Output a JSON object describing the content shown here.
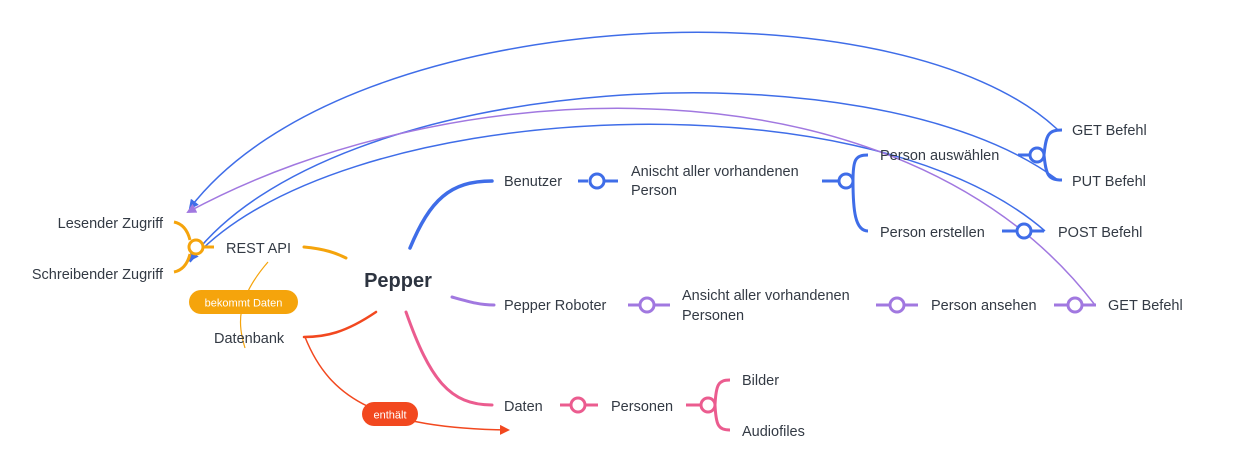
{
  "central": "Pepper",
  "colors": {
    "blue": "#3f6de8",
    "purple": "#a178e0",
    "pink": "#eb5c8f",
    "orange": "#f5a40c",
    "red": "#f2481f"
  },
  "nodes": {
    "benutzer": "Benutzer",
    "ansicht_person_1": "Anischt aller vorhandenen",
    "ansicht_person_2": "Person",
    "person_auswaehlen": "Person auswählen",
    "person_erstellen": "Person erstellen",
    "get_befehl_top": "GET Befehl",
    "put_befehl": "PUT Befehl",
    "post_befehl": "POST Befehl",
    "pepper_roboter": "Pepper Roboter",
    "ansicht_personen_1": "Ansicht aller vorhandenen",
    "ansicht_personen_2": "Personen",
    "person_ansehen": "Person ansehen",
    "get_befehl_mid": "GET Befehl",
    "daten": "Daten",
    "personen": "Personen",
    "bilder": "Bilder",
    "audiofiles": "Audiofiles",
    "rest_api": "REST API",
    "lesender_zugriff": "Lesender Zugriff",
    "schreibender_zugriff": "Schreibender Zugriff",
    "datenbank": "Datenbank"
  },
  "relations": {
    "bekommt_daten": "bekommt Daten",
    "enthaelt": "enthält"
  }
}
